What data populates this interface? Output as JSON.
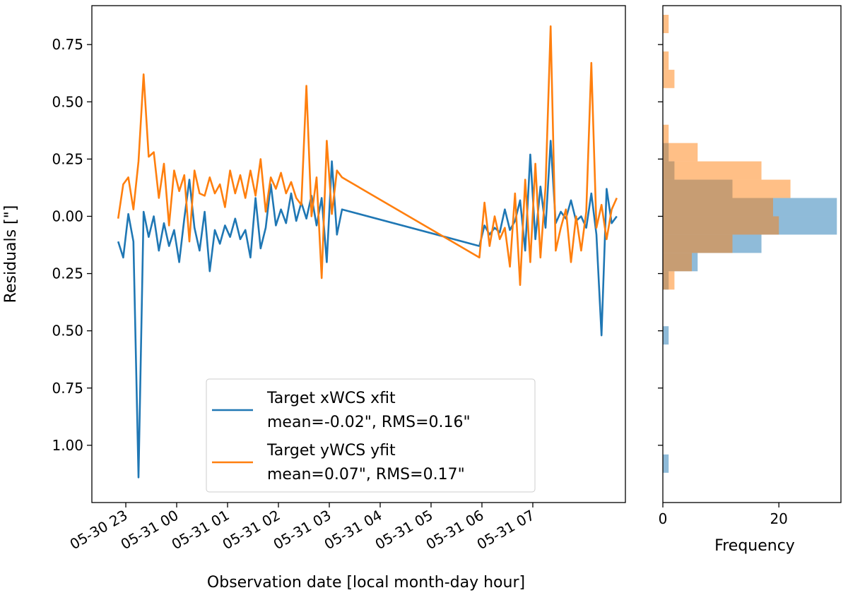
{
  "chart_data": [
    {
      "type": "line",
      "xlabel": "Observation date [local month-day hour]",
      "ylabel": "Residuals [\"]",
      "x": [
        -0.15,
        -0.05,
        0.05,
        0.15,
        0.25,
        0.35,
        0.45,
        0.55,
        0.65,
        0.75,
        0.85,
        0.95,
        1.05,
        1.15,
        1.25,
        1.35,
        1.45,
        1.55,
        1.65,
        1.75,
        1.85,
        1.95,
        2.05,
        2.15,
        2.25,
        2.35,
        2.45,
        2.55,
        2.65,
        2.75,
        2.85,
        2.95,
        3.05,
        3.15,
        3.25,
        3.35,
        3.45,
        3.55,
        3.65,
        3.75,
        3.85,
        3.95,
        4.05,
        4.15,
        4.25,
        6.95,
        7.05,
        7.15,
        7.25,
        7.35,
        7.45,
        7.55,
        7.65,
        7.75,
        7.85,
        7.95,
        8.05,
        8.15,
        8.25,
        8.35,
        8.45,
        8.55,
        8.65,
        8.75,
        8.85,
        8.95,
        9.05,
        9.15,
        9.25,
        9.35,
        9.45,
        9.55,
        9.65
      ],
      "series": [
        {
          "name": "Target xWCS xfit",
          "stats": "mean=-0.02\", RMS=0.16\"",
          "color": "#1f77b4",
          "values": [
            -0.11,
            -0.18,
            0.01,
            -0.11,
            -1.14,
            0.02,
            -0.09,
            0.0,
            -0.15,
            -0.03,
            -0.13,
            -0.06,
            -0.2,
            -0.01,
            0.16,
            -0.05,
            -0.15,
            0.02,
            -0.24,
            -0.06,
            -0.12,
            -0.04,
            -0.09,
            -0.01,
            -0.1,
            -0.06,
            -0.18,
            0.08,
            -0.14,
            -0.05,
            0.14,
            -0.04,
            0.03,
            -0.03,
            0.1,
            -0.02,
            0.06,
            -0.01,
            0.09,
            -0.04,
            0.08,
            -0.2,
            0.24,
            -0.08,
            0.03,
            -0.13,
            -0.04,
            -0.08,
            -0.05,
            -0.07,
            0.03,
            -0.06,
            -0.02,
            0.07,
            -0.15,
            0.27,
            -0.1,
            0.13,
            -0.05,
            0.33,
            -0.03,
            0.02,
            -0.01,
            0.07,
            -0.02,
            0.0,
            -0.05,
            0.1,
            -0.08,
            -0.52,
            0.12,
            -0.03,
            0.0
          ]
        },
        {
          "name": "Target yWCS yfit",
          "stats": "mean=0.07\", RMS=0.17\"",
          "color": "#ff7f0e",
          "values": [
            -0.01,
            0.14,
            0.17,
            0.03,
            0.24,
            0.62,
            0.26,
            0.28,
            0.08,
            0.23,
            -0.04,
            0.2,
            0.11,
            0.18,
            -0.11,
            0.2,
            0.1,
            0.09,
            0.17,
            0.1,
            0.14,
            0.04,
            0.2,
            0.1,
            0.18,
            0.08,
            0.2,
            0.09,
            0.25,
            0.02,
            0.17,
            0.12,
            0.19,
            0.1,
            0.15,
            0.08,
            0.05,
            0.57,
            0.0,
            0.17,
            -0.27,
            0.33,
            0.01,
            0.2,
            0.17,
            -0.18,
            0.06,
            -0.13,
            0.0,
            -0.1,
            -0.05,
            -0.22,
            0.1,
            -0.3,
            0.16,
            -0.2,
            0.23,
            -0.18,
            0.13,
            0.83,
            -0.15,
            -0.05,
            0.03,
            -0.2,
            0.0,
            -0.15,
            0.02,
            0.67,
            -0.05,
            0.05,
            -0.1,
            0.03,
            0.08
          ]
        }
      ],
      "xlim": [
        -0.667,
        9.82
      ],
      "xticks": [
        {
          "value": 0,
          "label": "05-30 23"
        },
        {
          "value": 1,
          "label": "05-31 00"
        },
        {
          "value": 2,
          "label": "05-31 01"
        },
        {
          "value": 3,
          "label": "05-31 02"
        },
        {
          "value": 4,
          "label": "05-31 03"
        },
        {
          "value": 5,
          "label": "05-31 04"
        },
        {
          "value": 6,
          "label": "05-31 05"
        },
        {
          "value": 7,
          "label": "05-31 06"
        },
        {
          "value": 8,
          "label": "05-31 07"
        }
      ],
      "ylim": [
        -1.25,
        0.92
      ],
      "yticks": [
        0.75,
        {
          "value": 0.5,
          "label": "0.50"
        },
        0.25,
        {
          "value": 0,
          "label": "0.00"
        },
        {
          "value": -0.25,
          "label": "0.25"
        },
        {
          "value": -0.5,
          "label": "0.50"
        },
        {
          "value": -0.75,
          "label": "0.75"
        },
        {
          "value": -1.0,
          "label": "1.00"
        }
      ],
      "legend": "lower center"
    },
    {
      "type": "histogram",
      "orientation": "horizontal",
      "xlabel": "Frequency",
      "bins": [
        -1.2,
        -1.12,
        -1.04,
        -0.96,
        -0.88,
        -0.8,
        -0.72,
        -0.64,
        -0.56,
        -0.48,
        -0.4,
        -0.32,
        -0.24,
        -0.16,
        -0.08,
        0.0,
        0.08,
        0.16,
        0.24,
        0.32,
        0.4,
        0.48,
        0.56,
        0.64,
        0.72,
        0.8,
        0.88
      ],
      "alpha": 0.5,
      "series": [
        {
          "color": "#1f77b4",
          "values": [
            0,
            1,
            0,
            0,
            0,
            0,
            0,
            0,
            1,
            0,
            0,
            1,
            6,
            17,
            30,
            30,
            12,
            2,
            1,
            0,
            0,
            0,
            0,
            0,
            0,
            0
          ]
        },
        {
          "color": "#ff7f0e",
          "values": [
            0,
            0,
            0,
            0,
            0,
            0,
            0,
            0,
            0,
            0,
            0,
            2,
            5,
            12,
            20,
            19,
            22,
            17,
            6,
            1,
            0,
            0,
            2,
            1,
            0,
            1
          ]
        }
      ],
      "xlim": [
        0,
        30.7
      ],
      "xticks": [
        0,
        20
      ],
      "ylim": [
        -1.25,
        0.92
      ]
    }
  ]
}
